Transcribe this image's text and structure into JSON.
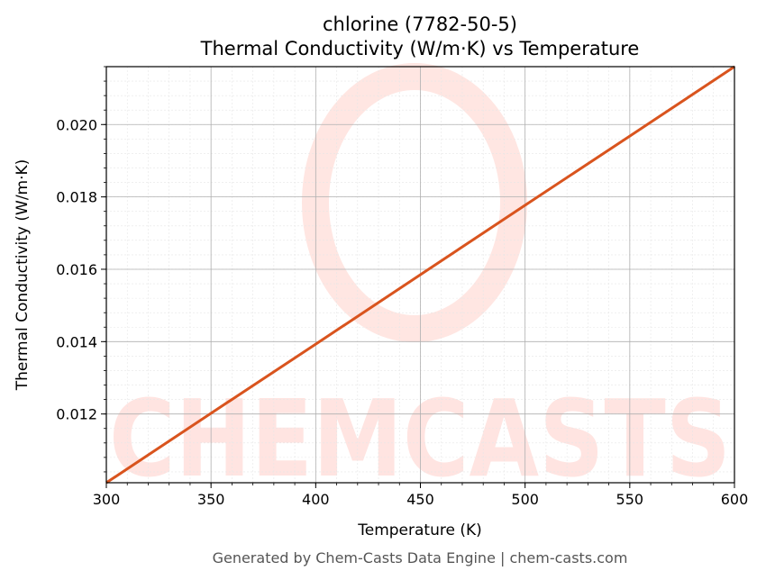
{
  "chart_data": {
    "type": "line",
    "title": "chlorine (7782-50-5)",
    "subtitle": "Thermal Conductivity (W/m·K) vs Temperature",
    "xlabel": "Temperature (K)",
    "ylabel": "Thermal Conductivity (W/m·K)",
    "xlim": [
      300,
      600
    ],
    "ylim": [
      0.0101,
      0.0216
    ],
    "x_ticks": [
      300,
      350,
      400,
      450,
      500,
      550,
      600
    ],
    "x_tick_labels": [
      "300",
      "350",
      "400",
      "450",
      "500",
      "550",
      "600"
    ],
    "y_ticks": [
      0.012,
      0.014,
      0.016,
      0.018,
      0.02
    ],
    "y_tick_labels": [
      "0.012",
      "0.014",
      "0.016",
      "0.018",
      "0.020"
    ],
    "grid": true,
    "series": [
      {
        "color": "#d9541e",
        "x": [
          300,
          350,
          400,
          450,
          500,
          550,
          600
        ],
        "y": [
          0.0101,
          0.01202,
          0.01393,
          0.01585,
          0.01777,
          0.01968,
          0.0216
        ]
      }
    ]
  },
  "watermark": "CHEMCASTS",
  "footer": "Generated by Chem-Casts Data Engine | chem-casts.com"
}
